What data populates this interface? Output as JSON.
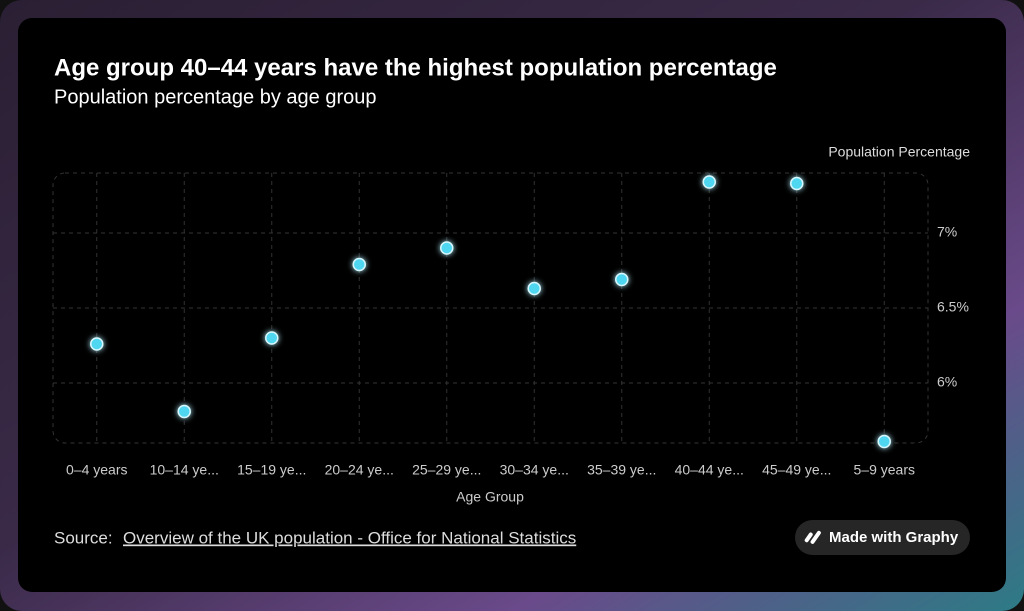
{
  "chart_data": {
    "type": "scatter",
    "title": "Age group 40–44 years have the highest population percentage",
    "subtitle": "Population percentage by age group",
    "y_axis_label": "Population Percentage",
    "x_axis_label": "Age Group",
    "categories": [
      "0–4 years",
      "10–14 ye...",
      "15–19 ye...",
      "20–24 ye...",
      "25–29 ye...",
      "30–34 ye...",
      "35–39 ye...",
      "40–44 ye...",
      "45–49 ye...",
      "5–9 years"
    ],
    "values": [
      6.26,
      5.81,
      6.3,
      6.79,
      6.9,
      6.63,
      6.69,
      7.34,
      7.33,
      5.61
    ],
    "color": "#4fd6f0",
    "ylim": [
      5.6,
      7.4
    ],
    "yticks": [
      {
        "value": 6,
        "label": "6%"
      },
      {
        "value": 6.5,
        "label": "6.5%"
      },
      {
        "value": 7,
        "label": "7%"
      }
    ],
    "grid": true
  },
  "footer": {
    "source_label": "Source:",
    "source_link": "Overview of the UK population - Office for National Statistics",
    "badge": "Made with Graphy"
  }
}
